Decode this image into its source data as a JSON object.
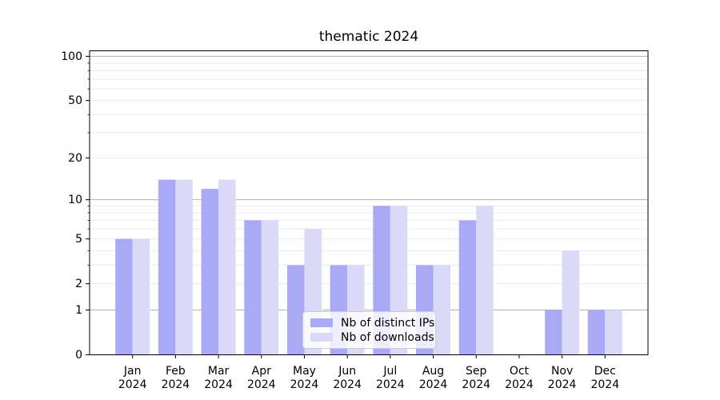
{
  "figure": {
    "background": "#ffffff"
  },
  "chart_data": {
    "type": "bar",
    "title": "thematic 2024",
    "categories": [
      "Jan 2024",
      "Feb 2024",
      "Mar 2024",
      "Apr 2024",
      "May 2024",
      "Jun 2024",
      "Jul 2024",
      "Aug 2024",
      "Sep 2024",
      "Oct 2024",
      "Nov 2024",
      "Dec 2024"
    ],
    "series": [
      {
        "name": "Nb of distinct IPs",
        "color": "#a9a9f6",
        "values": [
          5,
          14,
          12,
          7,
          3,
          3,
          9,
          3,
          7,
          0,
          1,
          1
        ]
      },
      {
        "name": "Nb of downloads",
        "color": "#dadaf8",
        "values": [
          5,
          14,
          14,
          7,
          6,
          3,
          9,
          3,
          9,
          0,
          4,
          1
        ]
      }
    ],
    "xlabel": "",
    "ylabel": "",
    "y_scale": "log1p",
    "ylim": [
      0,
      109
    ],
    "y_ticks": [
      0,
      1,
      2,
      5,
      10,
      20,
      50,
      100
    ],
    "major_gridlines": [
      1,
      10,
      100
    ],
    "minor_gridlines": [
      2,
      3,
      4,
      5,
      6,
      7,
      8,
      9,
      20,
      30,
      40,
      50,
      60,
      70,
      80,
      90
    ],
    "grid": true,
    "legend_position": "lower center-left inside plot"
  },
  "style_colors": {
    "major_grid": "#b3b3b3",
    "minor_grid": "#e9e9e9",
    "spine": "#000000",
    "tick_text": "#000000"
  }
}
